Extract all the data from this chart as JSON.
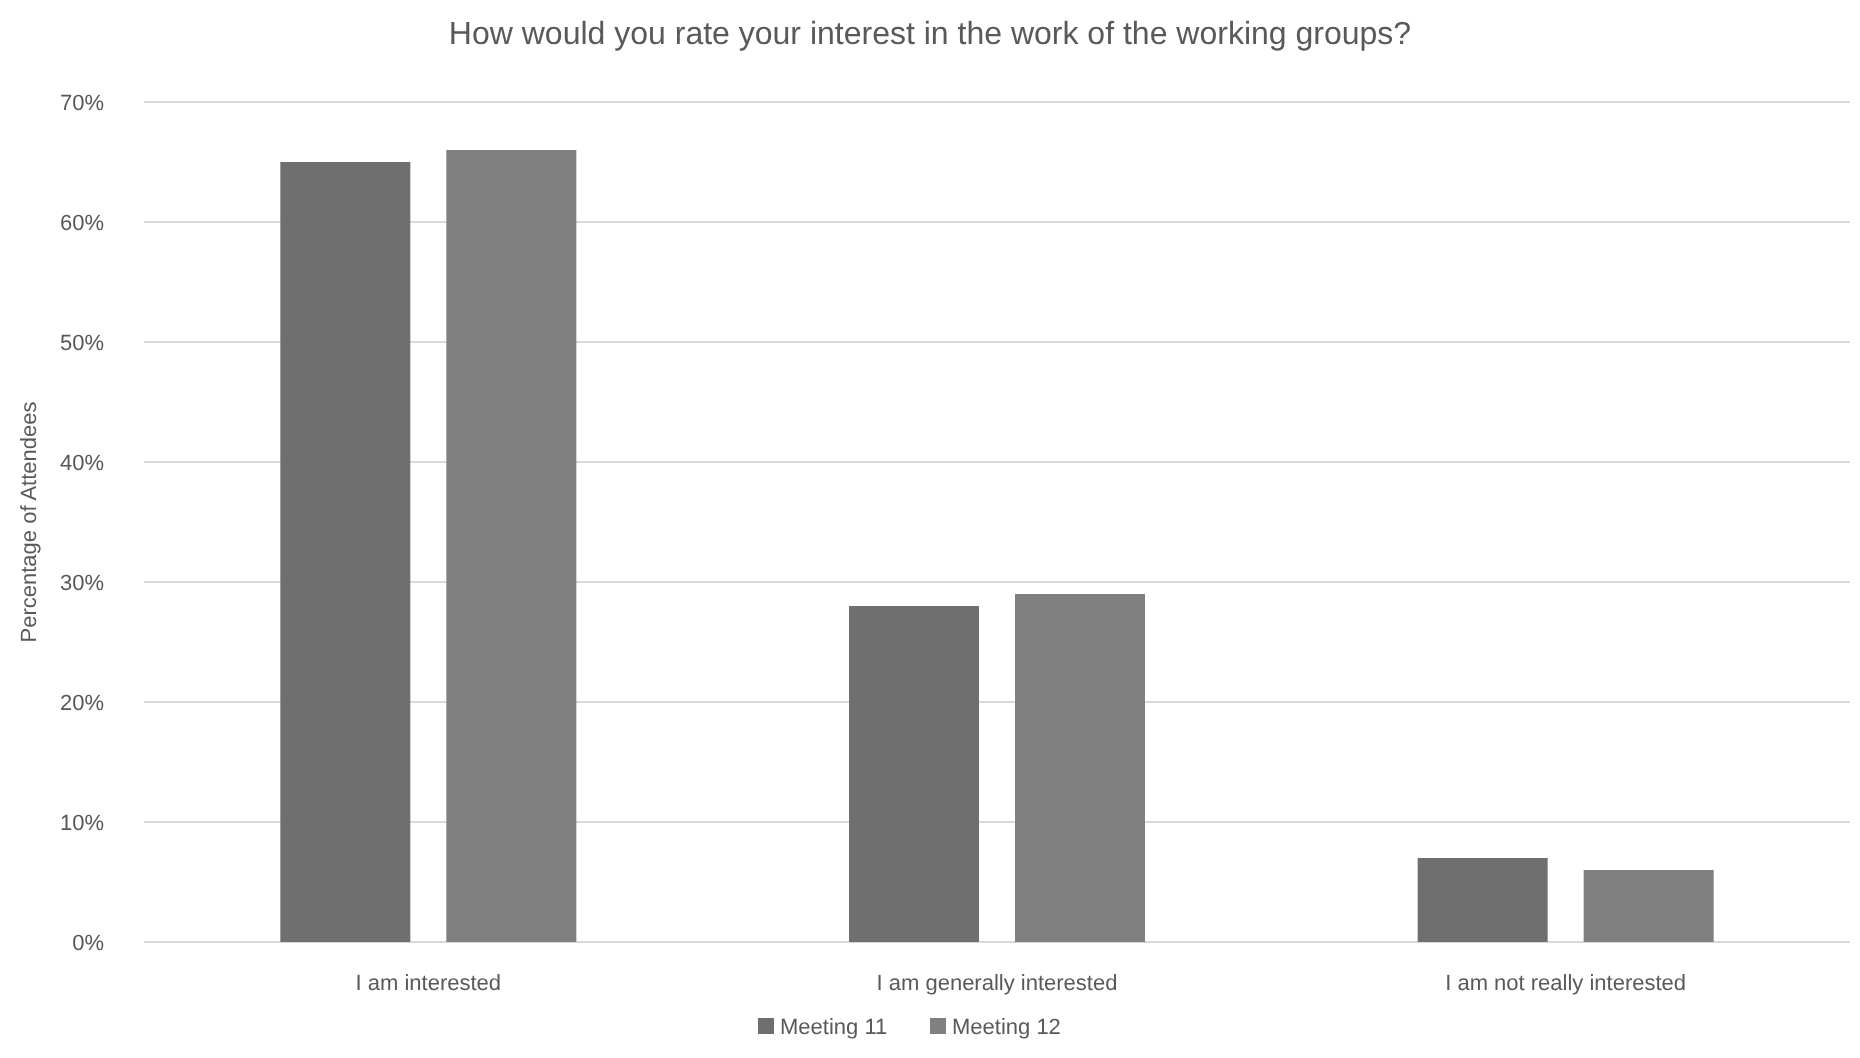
{
  "chart_data": {
    "type": "bar",
    "title": "How would you rate your interest in the work of the working groups?",
    "ylabel": "Percentage of Attendees",
    "categories": [
      "I am interested",
      "I am generally interested",
      "I am not really interested"
    ],
    "series": [
      {
        "name": "Meeting 11",
        "color": "#6f6f6f",
        "values": [
          65,
          28,
          7
        ]
      },
      {
        "name": "Meeting 12",
        "color": "#808080",
        "values": [
          66,
          29,
          6
        ]
      }
    ],
    "ylim": [
      0,
      70
    ],
    "yticks": [
      {
        "value": 0,
        "label": "0%"
      },
      {
        "value": 10,
        "label": "10%"
      },
      {
        "value": 20,
        "label": "20%"
      },
      {
        "value": 30,
        "label": "30%"
      },
      {
        "value": 40,
        "label": "40%"
      },
      {
        "value": 50,
        "label": "50%"
      },
      {
        "value": 60,
        "label": "60%"
      },
      {
        "value": 70,
        "label": "70%"
      }
    ],
    "grid": "y",
    "legend": "bottom"
  }
}
